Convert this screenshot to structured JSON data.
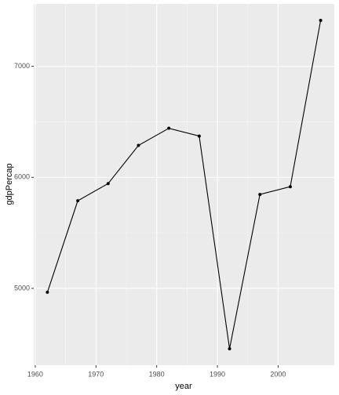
{
  "chart_data": {
    "type": "line",
    "x_label": "year",
    "y_label": "gdpPercap",
    "x": [
      1962,
      1967,
      1972,
      1977,
      1982,
      1987,
      1992,
      1997,
      2002,
      2007
    ],
    "series": [
      {
        "color": "#000000",
        "values": [
          4965,
          5789,
          5944,
          6288,
          6442,
          6372,
          4456,
          5846,
          5916,
          7414
        ]
      }
    ],
    "xlim": [
      1959.75,
      2009.25
    ],
    "xticks": [
      1960,
      1970,
      1980,
      1990,
      2000
    ],
    "ylim": [
      4308,
      7562
    ],
    "yticks": [
      5000,
      6000,
      7000
    ],
    "grid": true
  }
}
